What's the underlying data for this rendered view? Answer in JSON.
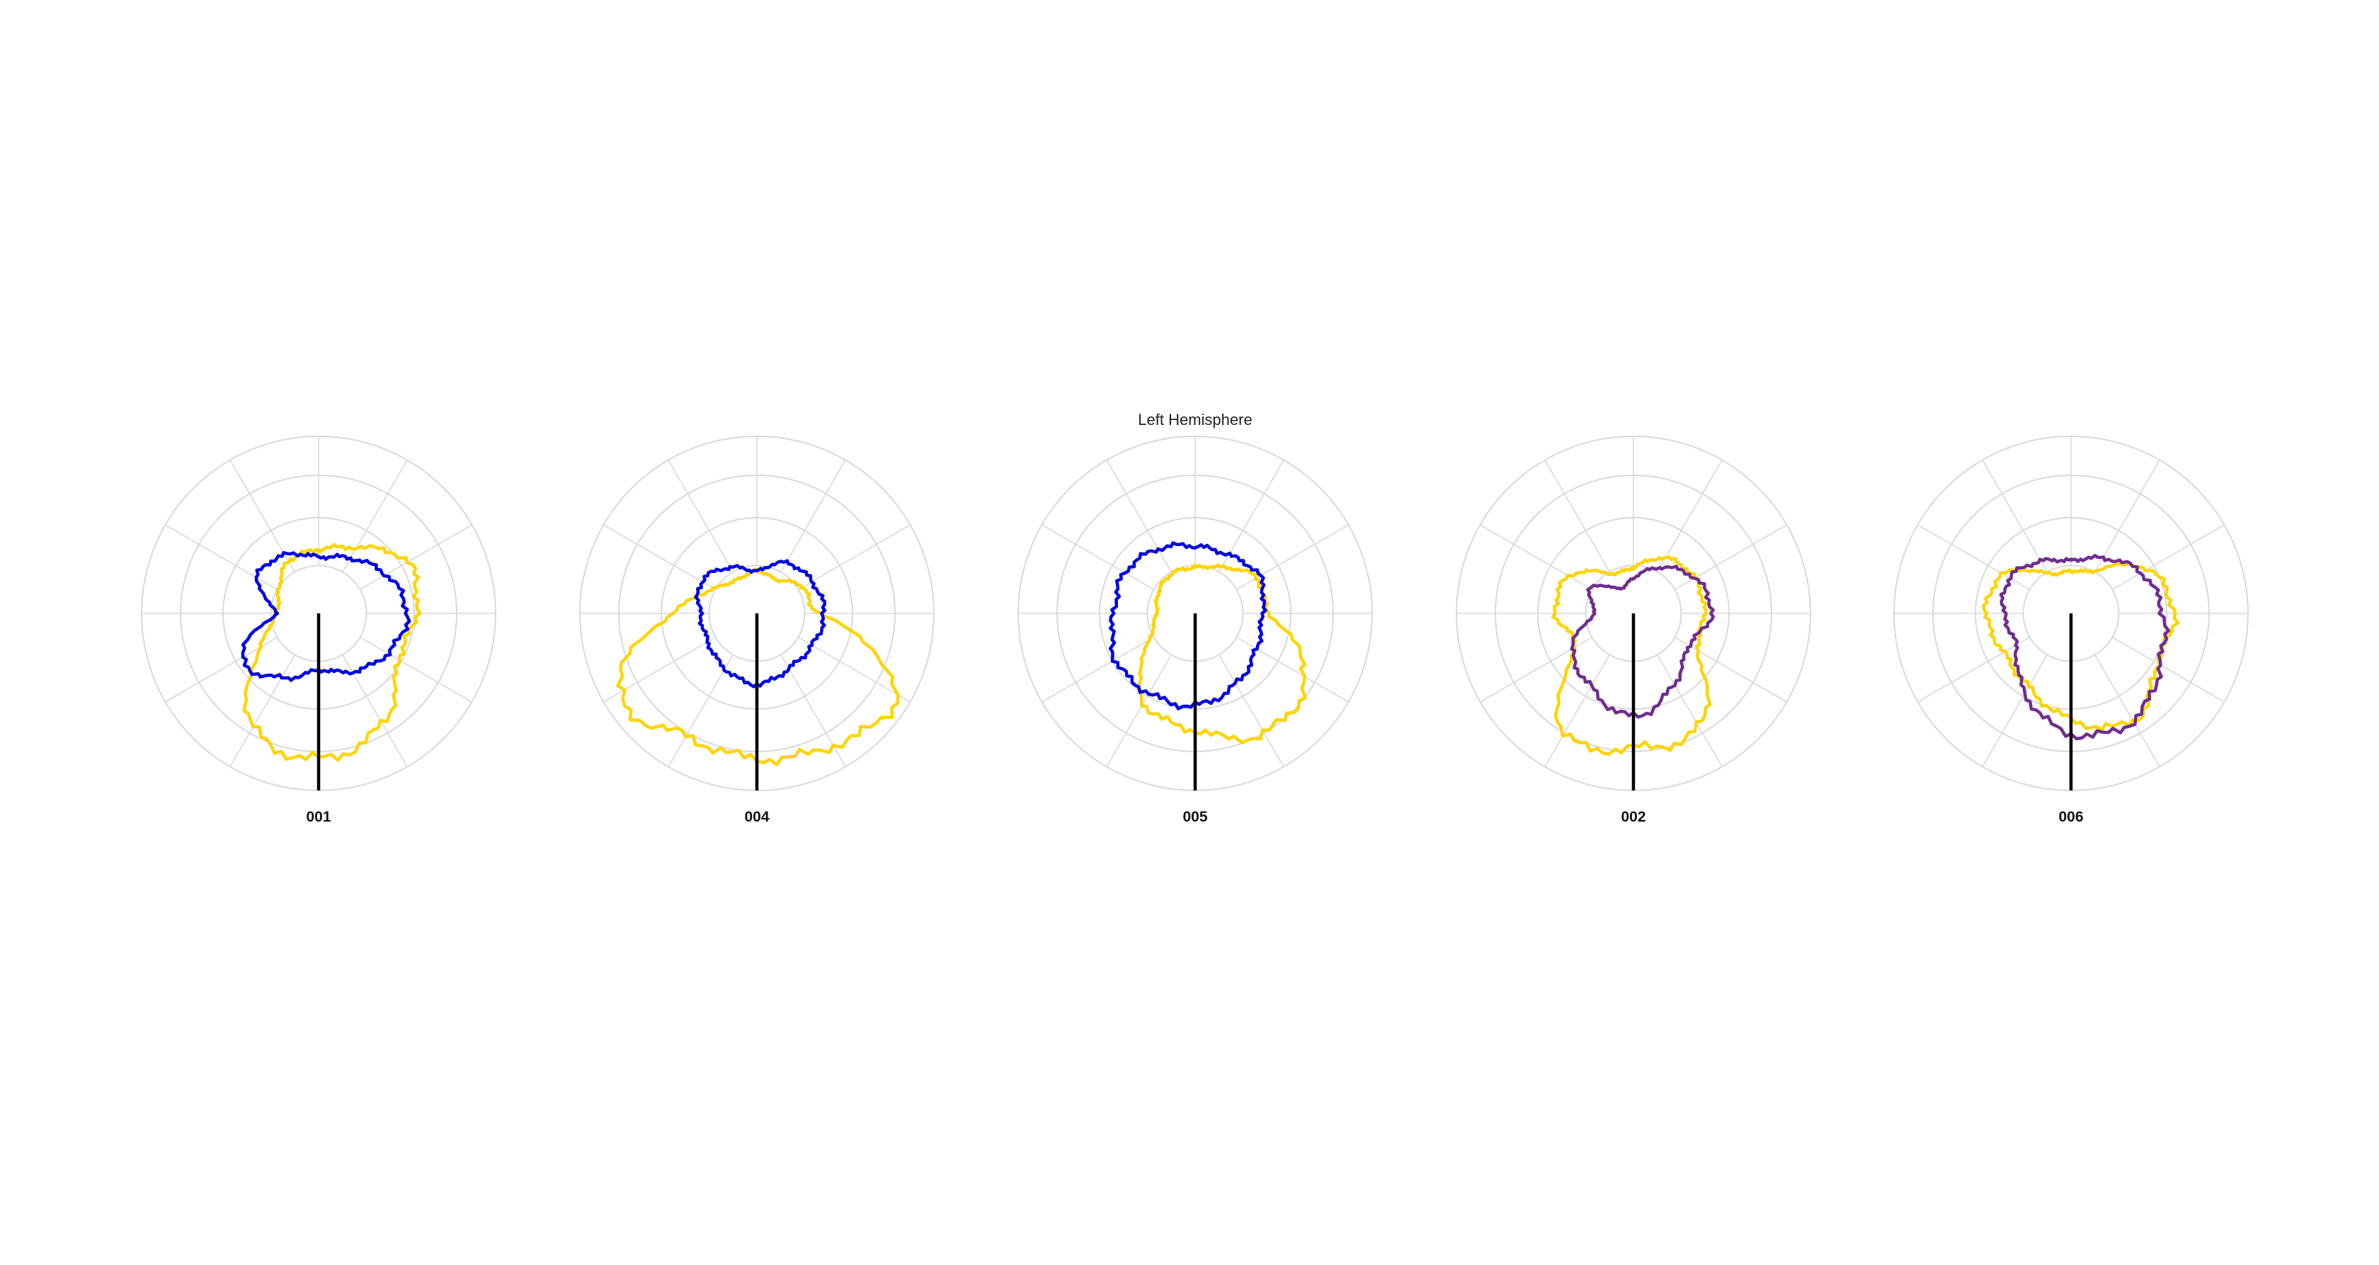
{
  "figure": {
    "title": "Left Hemisphere"
  },
  "colors": {
    "grid": "#d9d9d9",
    "vector": "#000000",
    "yellow": "#ffd400",
    "blue": "#0000e6",
    "purple": "#6f2d8f"
  },
  "chart_data": [
    {
      "type": "polar-line",
      "label": "001",
      "rlim": [
        0,
        1
      ],
      "vector": {
        "angle_deg": 180,
        "r": 1.0
      },
      "series": [
        {
          "color": "yellow",
          "angles_deg": [
            0,
            30,
            60,
            90,
            120,
            150,
            180,
            210,
            240,
            270,
            300,
            330
          ],
          "r": [
            0.36,
            0.43,
            0.58,
            0.55,
            0.52,
            0.72,
            0.82,
            0.74,
            0.38,
            0.24,
            0.26,
            0.34
          ]
        },
        {
          "color": "blue",
          "angles_deg": [
            0,
            30,
            60,
            90,
            120,
            150,
            180,
            210,
            240,
            270,
            300,
            330
          ],
          "r": [
            0.32,
            0.36,
            0.44,
            0.5,
            0.45,
            0.38,
            0.32,
            0.42,
            0.5,
            0.24,
            0.4,
            0.38
          ]
        }
      ]
    },
    {
      "type": "polar-line",
      "label": "004",
      "rlim": [
        0,
        1
      ],
      "vector": {
        "angle_deg": 180,
        "r": 1.0
      },
      "series": [
        {
          "color": "yellow",
          "angles_deg": [
            0,
            30,
            60,
            90,
            120,
            150,
            180,
            210,
            240,
            270,
            300,
            330
          ],
          "r": [
            0.24,
            0.22,
            0.3,
            0.36,
            0.9,
            0.86,
            0.82,
            0.8,
            0.9,
            0.48,
            0.28,
            0.22
          ]
        },
        {
          "color": "blue",
          "angles_deg": [
            0,
            30,
            60,
            90,
            120,
            150,
            180,
            210,
            240,
            270,
            300,
            330
          ],
          "r": [
            0.24,
            0.33,
            0.36,
            0.38,
            0.36,
            0.36,
            0.4,
            0.36,
            0.32,
            0.32,
            0.36,
            0.3
          ]
        }
      ]
    },
    {
      "type": "polar-line",
      "label": "005",
      "rlim": [
        0,
        1
      ],
      "vector": {
        "angle_deg": 180,
        "r": 1.0
      },
      "series": [
        {
          "color": "yellow",
          "angles_deg": [
            0,
            30,
            60,
            90,
            120,
            150,
            180,
            210,
            240,
            270,
            300,
            330
          ],
          "r": [
            0.26,
            0.3,
            0.4,
            0.42,
            0.72,
            0.78,
            0.66,
            0.58,
            0.3,
            0.22,
            0.24,
            0.26
          ]
        },
        {
          "color": "blue",
          "angles_deg": [
            0,
            30,
            60,
            90,
            120,
            150,
            180,
            210,
            240,
            270,
            300,
            330
          ],
          "r": [
            0.38,
            0.38,
            0.42,
            0.38,
            0.4,
            0.46,
            0.52,
            0.52,
            0.52,
            0.46,
            0.46,
            0.42
          ]
        }
      ]
    },
    {
      "type": "polar-line",
      "label": "002",
      "rlim": [
        0,
        1
      ],
      "vector": {
        "angle_deg": 180,
        "r": 1.0
      },
      "series": [
        {
          "color": "yellow",
          "angles_deg": [
            0,
            30,
            60,
            90,
            120,
            150,
            180,
            210,
            240,
            270,
            300,
            330
          ],
          "r": [
            0.26,
            0.36,
            0.4,
            0.4,
            0.42,
            0.74,
            0.76,
            0.78,
            0.38,
            0.44,
            0.42,
            0.26
          ]
        },
        {
          "color": "purple",
          "angles_deg": [
            0,
            30,
            60,
            90,
            120,
            150,
            180,
            210,
            240,
            270,
            300,
            330
          ],
          "r": [
            0.2,
            0.3,
            0.4,
            0.44,
            0.36,
            0.46,
            0.58,
            0.48,
            0.4,
            0.22,
            0.28,
            0.16
          ]
        }
      ]
    },
    {
      "type": "polar-line",
      "label": "006",
      "rlim": [
        0,
        1
      ],
      "vector": {
        "angle_deg": 180,
        "r": 1.0
      },
      "series": [
        {
          "color": "yellow",
          "angles_deg": [
            0,
            30,
            60,
            90,
            120,
            150,
            180,
            210,
            240,
            270,
            300,
            330
          ],
          "r": [
            0.24,
            0.28,
            0.5,
            0.58,
            0.56,
            0.7,
            0.6,
            0.48,
            0.44,
            0.48,
            0.44,
            0.26
          ]
        },
        {
          "color": "purple",
          "angles_deg": [
            0,
            30,
            60,
            90,
            120,
            150,
            180,
            210,
            240,
            270,
            300,
            330
          ],
          "r": [
            0.3,
            0.36,
            0.46,
            0.52,
            0.58,
            0.7,
            0.68,
            0.52,
            0.36,
            0.38,
            0.4,
            0.34
          ]
        }
      ]
    }
  ]
}
